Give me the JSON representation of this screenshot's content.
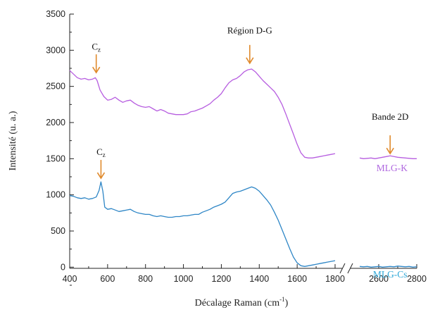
{
  "chart_data": {
    "type": "line",
    "xlabel": "Décalage Raman (cm",
    "xlabel_sup": "-1",
    "xlabel_close": ")",
    "ylabel": "Intensité (u. a.)",
    "xlim_left": [
      400,
      1800
    ],
    "xlim_right": [
      2500,
      2800
    ],
    "ylim": [
      -250,
      3500
    ],
    "x_ticks": [
      "400",
      "600",
      "800",
      "1000",
      "1200",
      "1400",
      "1600",
      "1800",
      "2600",
      "2800"
    ],
    "y_ticks": [
      "0",
      "500",
      "1000",
      "1500",
      "2000",
      "2500",
      "3000",
      "3500"
    ],
    "axis_break": true,
    "arrow_color": "#e08a2c",
    "annotations": [
      {
        "text": "C",
        "sub": "z",
        "x": 540,
        "y_arrow": 2690,
        "y_text": 3010,
        "series": "MLG-K"
      },
      {
        "text": "Région D-G",
        "x": 1350,
        "y_arrow": 2820,
        "y_text": 3230,
        "series": "MLG-K"
      },
      {
        "text": "Bande 2D",
        "x": 2660,
        "y_arrow": 1570,
        "y_text": 2040,
        "series": "MLG-K"
      },
      {
        "text": "C",
        "sub": "z",
        "x": 565,
        "y_arrow": 1230,
        "y_text": 1550,
        "series": "MLG-Cs"
      }
    ],
    "series": [
      {
        "name": "MLG-K",
        "color": "#b75ee0",
        "label_color": "#b068e0",
        "label_x": 2670,
        "label_y": 1330,
        "points": [
          [
            400,
            2720
          ],
          [
            420,
            2670
          ],
          [
            440,
            2620
          ],
          [
            460,
            2600
          ],
          [
            480,
            2610
          ],
          [
            500,
            2590
          ],
          [
            520,
            2600
          ],
          [
            535,
            2620
          ],
          [
            545,
            2580
          ],
          [
            560,
            2450
          ],
          [
            580,
            2360
          ],
          [
            600,
            2310
          ],
          [
            620,
            2320
          ],
          [
            640,
            2350
          ],
          [
            660,
            2310
          ],
          [
            680,
            2280
          ],
          [
            700,
            2300
          ],
          [
            720,
            2310
          ],
          [
            740,
            2270
          ],
          [
            760,
            2240
          ],
          [
            780,
            2220
          ],
          [
            800,
            2210
          ],
          [
            820,
            2220
          ],
          [
            840,
            2190
          ],
          [
            860,
            2160
          ],
          [
            880,
            2180
          ],
          [
            900,
            2160
          ],
          [
            920,
            2130
          ],
          [
            940,
            2120
          ],
          [
            960,
            2110
          ],
          [
            980,
            2110
          ],
          [
            1000,
            2110
          ],
          [
            1020,
            2120
          ],
          [
            1040,
            2150
          ],
          [
            1060,
            2160
          ],
          [
            1080,
            2180
          ],
          [
            1100,
            2200
          ],
          [
            1120,
            2230
          ],
          [
            1140,
            2260
          ],
          [
            1160,
            2310
          ],
          [
            1180,
            2350
          ],
          [
            1200,
            2400
          ],
          [
            1220,
            2480
          ],
          [
            1240,
            2550
          ],
          [
            1260,
            2590
          ],
          [
            1280,
            2610
          ],
          [
            1300,
            2650
          ],
          [
            1320,
            2700
          ],
          [
            1340,
            2730
          ],
          [
            1360,
            2740
          ],
          [
            1380,
            2700
          ],
          [
            1400,
            2640
          ],
          [
            1420,
            2580
          ],
          [
            1440,
            2530
          ],
          [
            1460,
            2480
          ],
          [
            1480,
            2430
          ],
          [
            1500,
            2350
          ],
          [
            1520,
            2250
          ],
          [
            1540,
            2120
          ],
          [
            1560,
            1980
          ],
          [
            1580,
            1840
          ],
          [
            1600,
            1700
          ],
          [
            1620,
            1580
          ],
          [
            1640,
            1520
          ],
          [
            1660,
            1510
          ],
          [
            1680,
            1510
          ],
          [
            1700,
            1520
          ],
          [
            1720,
            1530
          ],
          [
            1740,
            1540
          ],
          [
            1760,
            1550
          ],
          [
            1780,
            1560
          ],
          [
            1800,
            1570
          ],
          [
            2500,
            1510
          ],
          [
            2520,
            1500
          ],
          [
            2540,
            1505
          ],
          [
            2560,
            1510
          ],
          [
            2580,
            1500
          ],
          [
            2600,
            1510
          ],
          [
            2620,
            1520
          ],
          [
            2640,
            1530
          ],
          [
            2660,
            1540
          ],
          [
            2680,
            1530
          ],
          [
            2700,
            1520
          ],
          [
            2720,
            1515
          ],
          [
            2740,
            1510
          ],
          [
            2760,
            1505
          ],
          [
            2780,
            1500
          ],
          [
            2800,
            1500
          ]
        ]
      },
      {
        "name": "MLG-Cs",
        "color": "#2e86c6",
        "label_color": "#2fa8d8",
        "label_x": 2660,
        "label_y": -145,
        "points": [
          [
            400,
            990
          ],
          [
            420,
            980
          ],
          [
            440,
            960
          ],
          [
            460,
            950
          ],
          [
            480,
            960
          ],
          [
            500,
            940
          ],
          [
            520,
            950
          ],
          [
            540,
            970
          ],
          [
            555,
            1060
          ],
          [
            565,
            1180
          ],
          [
            575,
            1050
          ],
          [
            585,
            830
          ],
          [
            600,
            800
          ],
          [
            620,
            810
          ],
          [
            640,
            790
          ],
          [
            660,
            770
          ],
          [
            680,
            780
          ],
          [
            700,
            790
          ],
          [
            720,
            800
          ],
          [
            740,
            770
          ],
          [
            760,
            750
          ],
          [
            780,
            740
          ],
          [
            800,
            730
          ],
          [
            820,
            730
          ],
          [
            840,
            710
          ],
          [
            860,
            700
          ],
          [
            880,
            710
          ],
          [
            900,
            700
          ],
          [
            920,
            690
          ],
          [
            940,
            690
          ],
          [
            960,
            700
          ],
          [
            980,
            700
          ],
          [
            1000,
            710
          ],
          [
            1020,
            710
          ],
          [
            1040,
            720
          ],
          [
            1060,
            730
          ],
          [
            1080,
            730
          ],
          [
            1100,
            760
          ],
          [
            1120,
            780
          ],
          [
            1140,
            800
          ],
          [
            1160,
            830
          ],
          [
            1180,
            850
          ],
          [
            1200,
            870
          ],
          [
            1220,
            900
          ],
          [
            1240,
            960
          ],
          [
            1260,
            1020
          ],
          [
            1280,
            1040
          ],
          [
            1300,
            1050
          ],
          [
            1320,
            1070
          ],
          [
            1340,
            1090
          ],
          [
            1360,
            1110
          ],
          [
            1380,
            1090
          ],
          [
            1400,
            1050
          ],
          [
            1420,
            990
          ],
          [
            1440,
            930
          ],
          [
            1460,
            860
          ],
          [
            1480,
            760
          ],
          [
            1500,
            650
          ],
          [
            1520,
            520
          ],
          [
            1540,
            390
          ],
          [
            1560,
            260
          ],
          [
            1580,
            140
          ],
          [
            1600,
            60
          ],
          [
            1620,
            20
          ],
          [
            1640,
            10
          ],
          [
            1660,
            20
          ],
          [
            1680,
            30
          ],
          [
            1700,
            40
          ],
          [
            1720,
            50
          ],
          [
            1740,
            60
          ],
          [
            1760,
            70
          ],
          [
            1780,
            80
          ],
          [
            1800,
            90
          ],
          [
            2500,
            10
          ],
          [
            2520,
            5
          ],
          [
            2540,
            10
          ],
          [
            2560,
            0
          ],
          [
            2580,
            5
          ],
          [
            2600,
            10
          ],
          [
            2620,
            0
          ],
          [
            2640,
            5
          ],
          [
            2660,
            10
          ],
          [
            2680,
            5
          ],
          [
            2700,
            15
          ],
          [
            2720,
            10
          ],
          [
            2740,
            5
          ],
          [
            2760,
            10
          ],
          [
            2780,
            0
          ],
          [
            2800,
            5
          ]
        ]
      }
    ]
  }
}
